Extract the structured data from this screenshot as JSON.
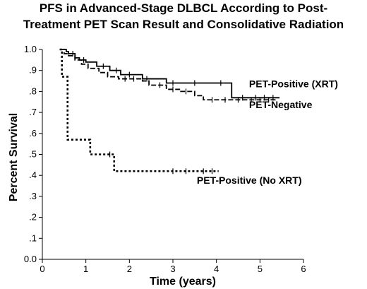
{
  "chart_data": {
    "type": "line",
    "subtype": "kaplan-meier",
    "title_lines": [
      "PFS in Advanced-Stage DLBCL According to Post-",
      "Treatment PET Scan Result and Consolidative Radiation"
    ],
    "xlabel": "Time (years)",
    "ylabel": "Percent Survival",
    "xlim": [
      0,
      6
    ],
    "ylim": [
      0,
      1.0
    ],
    "x_ticks": [
      0,
      1,
      2,
      3,
      4,
      5,
      6
    ],
    "x_tick_labels": [
      "0",
      "1",
      "2",
      "3",
      "4",
      "5",
      "6"
    ],
    "y_ticks": [
      0,
      0.1,
      0.2,
      0.3,
      0.4,
      0.5,
      0.6,
      0.7,
      0.8,
      0.9,
      1.0
    ],
    "y_tick_labels": [
      "0.0",
      ".1",
      ".2",
      ".3",
      ".4",
      ".5",
      ".6",
      ".7",
      ".8",
      ".9",
      "1.0"
    ],
    "grid": false,
    "legend": "inline-labels",
    "series": [
      {
        "name": "PET-Positive (XRT)",
        "line_style": "solid",
        "steps": [
          [
            0.4,
            1.0
          ],
          [
            0.55,
            0.99
          ],
          [
            0.6,
            0.98
          ],
          [
            0.75,
            0.96
          ],
          [
            0.85,
            0.95
          ],
          [
            1.0,
            0.94
          ],
          [
            1.25,
            0.92
          ],
          [
            1.55,
            0.9
          ],
          [
            1.8,
            0.88
          ],
          [
            2.3,
            0.86
          ],
          [
            2.85,
            0.84
          ],
          [
            4.35,
            0.77
          ],
          [
            5.45,
            0.77
          ]
        ],
        "censor_x": [
          0.7,
          0.95,
          1.4,
          1.7,
          2.0,
          2.4,
          3.0,
          3.5,
          4.1,
          4.6,
          4.9,
          5.1,
          5.3
        ]
      },
      {
        "name": "PET-Negative",
        "line_style": "dashed",
        "steps": [
          [
            0.4,
            1.0
          ],
          [
            0.5,
            0.98
          ],
          [
            0.6,
            0.97
          ],
          [
            0.75,
            0.95
          ],
          [
            0.9,
            0.93
          ],
          [
            1.05,
            0.91
          ],
          [
            1.3,
            0.89
          ],
          [
            1.5,
            0.87
          ],
          [
            1.75,
            0.86
          ],
          [
            2.3,
            0.85
          ],
          [
            2.45,
            0.83
          ],
          [
            2.85,
            0.81
          ],
          [
            3.15,
            0.8
          ],
          [
            3.5,
            0.78
          ],
          [
            3.7,
            0.76
          ],
          [
            5.4,
            0.76
          ]
        ],
        "censor_x": [
          1.9,
          2.1,
          2.7,
          3.0,
          3.3,
          3.9,
          4.2,
          4.5,
          4.8,
          5.0,
          5.2
        ]
      },
      {
        "name": "PET-Positive (No XRT)",
        "line_style": "dotted",
        "steps": [
          [
            0.4,
            1.0
          ],
          [
            0.45,
            0.87
          ],
          [
            0.58,
            0.57
          ],
          [
            0.95,
            0.57
          ],
          [
            1.1,
            0.5
          ],
          [
            1.4,
            0.5
          ],
          [
            1.65,
            0.42
          ],
          [
            4.05,
            0.42
          ]
        ],
        "censor_x": [
          1.55,
          3.0,
          3.3,
          3.7,
          3.9
        ]
      }
    ],
    "annotations": [
      {
        "text": "PET-Positive (XRT)",
        "x": 4.75,
        "y": 0.82
      },
      {
        "text": "PET-Negative",
        "x": 4.75,
        "y": 0.72
      },
      {
        "text": "PET-Positive (No XRT)",
        "x": 3.55,
        "y": 0.36
      }
    ]
  }
}
